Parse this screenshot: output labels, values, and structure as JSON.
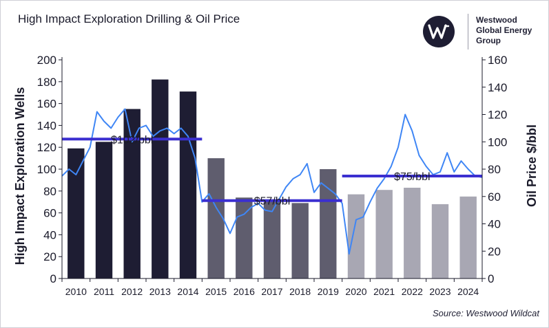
{
  "title": "High Impact Exploration Drilling & Oil Price",
  "logo": {
    "icon": "westwood-w-logo-icon",
    "lines": [
      "Westwood",
      "Global Energy",
      "Group"
    ]
  },
  "source": "Source: Westwood Wildcat",
  "colors": {
    "bar_dark": "#1e1d33",
    "bar_mid": "#5f5d6e",
    "bar_light": "#a8a7b3",
    "oil_line": "#3f86f5",
    "avg_line": "#3b2fd0"
  },
  "chart_data": {
    "type": "bar",
    "categories": [
      "2010",
      "2011",
      "2012",
      "2013",
      "2014",
      "2015",
      "2016",
      "2017",
      "2018",
      "2019",
      "2020",
      "2021",
      "2022",
      "2023",
      "2024"
    ],
    "series": [
      {
        "values": [
          119,
          125,
          155,
          182,
          171,
          110,
          74,
          72,
          69,
          100,
          77,
          81,
          83,
          68,
          75
        ],
        "axis": "left",
        "bar_shades": [
          "dark",
          "dark",
          "dark",
          "dark",
          "dark",
          "mid",
          "mid",
          "mid",
          "mid",
          "mid",
          "light",
          "light",
          "light",
          "light",
          "light"
        ]
      },
      {
        "axis": "right",
        "type": "line",
        "x": [
          2010.0,
          2010.25,
          2010.5,
          2010.75,
          2011.0,
          2011.25,
          2011.5,
          2011.75,
          2012.0,
          2012.25,
          2012.5,
          2012.75,
          2013.0,
          2013.25,
          2013.5,
          2013.75,
          2014.0,
          2014.25,
          2014.5,
          2014.75,
          2015.0,
          2015.25,
          2015.5,
          2015.75,
          2016.0,
          2016.25,
          2016.5,
          2016.75,
          2017.0,
          2017.25,
          2017.5,
          2017.75,
          2018.0,
          2018.25,
          2018.5,
          2018.75,
          2019.0,
          2019.25,
          2019.5,
          2019.75,
          2020.0,
          2020.25,
          2020.5,
          2020.75,
          2021.0,
          2021.25,
          2021.5,
          2021.75,
          2022.0,
          2022.25,
          2022.5,
          2022.75,
          2023.0,
          2023.25,
          2023.5,
          2023.75,
          2024.0,
          2024.25,
          2024.5,
          2024.75,
          2025.0
        ],
        "values": [
          75,
          80,
          76,
          86,
          96,
          122,
          115,
          110,
          118,
          124,
          100,
          110,
          112,
          104,
          108,
          110,
          106,
          110,
          104,
          88,
          56,
          62,
          52,
          44,
          33,
          45,
          47,
          52,
          55,
          50,
          49,
          58,
          67,
          73,
          76,
          84,
          63,
          70,
          66,
          62,
          55,
          18,
          43,
          45,
          56,
          66,
          73,
          82,
          96,
          120,
          108,
          90,
          82,
          76,
          78,
          92,
          78,
          86,
          80,
          75,
          74
        ]
      }
    ],
    "averages": [
      {
        "label": "$102/bbl",
        "start": 2010,
        "end": 2015,
        "value": 102
      },
      {
        "label": "$57/bbl",
        "start": 2015,
        "end": 2020,
        "value": 57
      },
      {
        "label": "$75/bbl",
        "start": 2020,
        "end": 2025,
        "value": 75
      }
    ],
    "ylabel": "High Impact Exploration Wells",
    "y2label": "Oil Price $/bbl",
    "ylim": [
      0,
      200
    ],
    "y2lim": [
      0,
      160
    ],
    "yticks": [
      "0",
      "20",
      "40",
      "60",
      "80",
      "100",
      "120",
      "140",
      "160",
      "180",
      "200"
    ],
    "y2ticks": [
      "0",
      "20",
      "40",
      "60",
      "80",
      "100",
      "120",
      "140",
      "160"
    ]
  }
}
